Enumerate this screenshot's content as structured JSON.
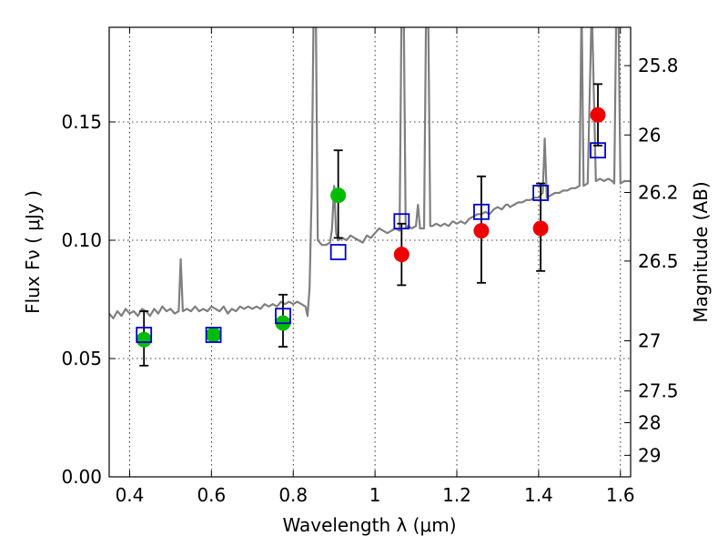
{
  "chart_data": {
    "type": "scatter",
    "xlabel": "Wavelength  λ (μm)",
    "ylabel": "Flux  Fν  ( μJy )",
    "y2label": "Magnitude (AB)",
    "xlim": [
      0.35,
      1.625
    ],
    "ylim": [
      0.0,
      0.19
    ],
    "x_ticks": [
      0.4,
      0.6,
      0.8,
      1.0,
      1.2,
      1.4,
      1.6
    ],
    "x_tick_labels": [
      "0.4",
      "0.6",
      "0.8",
      "1",
      "1.2",
      "1.4",
      "1.6"
    ],
    "y_ticks": [
      0.0,
      0.05,
      0.1,
      0.15
    ],
    "y_tick_labels": [
      "0.00",
      "0.05",
      "0.10",
      "0.15"
    ],
    "y2_ticks": [
      {
        "label": "25.8",
        "flux": 0.1738
      },
      {
        "label": "26",
        "flux": 0.1445
      },
      {
        "label": "26.2",
        "flux": 0.1202
      },
      {
        "label": "26.5",
        "flux": 0.0912
      },
      {
        "label": "27",
        "flux": 0.0575
      },
      {
        "label": "27.5",
        "flux": 0.0363
      },
      {
        "label": "28",
        "flux": 0.0229
      },
      {
        "label": "29",
        "flux": 0.0091
      }
    ],
    "grid": true,
    "series": [
      {
        "marker": "line",
        "color": "#7f7f7f",
        "points": [
          [
            0.35,
            0.069
          ],
          [
            0.36,
            0.067
          ],
          [
            0.37,
            0.07
          ],
          [
            0.38,
            0.068
          ],
          [
            0.39,
            0.071
          ],
          [
            0.4,
            0.069
          ],
          [
            0.41,
            0.07
          ],
          [
            0.42,
            0.068
          ],
          [
            0.43,
            0.071
          ],
          [
            0.44,
            0.07
          ],
          [
            0.45,
            0.068
          ],
          [
            0.46,
            0.071
          ],
          [
            0.47,
            0.069
          ],
          [
            0.48,
            0.072
          ],
          [
            0.49,
            0.07
          ],
          [
            0.5,
            0.071
          ],
          [
            0.51,
            0.069
          ],
          [
            0.52,
            0.07
          ],
          [
            0.525,
            0.092
          ],
          [
            0.53,
            0.07
          ],
          [
            0.54,
            0.071
          ],
          [
            0.55,
            0.07
          ],
          [
            0.56,
            0.072
          ],
          [
            0.57,
            0.07
          ],
          [
            0.58,
            0.071
          ],
          [
            0.59,
            0.07
          ],
          [
            0.6,
            0.072
          ],
          [
            0.61,
            0.071
          ],
          [
            0.62,
            0.07
          ],
          [
            0.63,
            0.072
          ],
          [
            0.64,
            0.069
          ],
          [
            0.65,
            0.071
          ],
          [
            0.66,
            0.07
          ],
          [
            0.67,
            0.072
          ],
          [
            0.68,
            0.071
          ],
          [
            0.69,
            0.072
          ],
          [
            0.7,
            0.071
          ],
          [
            0.71,
            0.072
          ],
          [
            0.72,
            0.071
          ],
          [
            0.73,
            0.073
          ],
          [
            0.74,
            0.072
          ],
          [
            0.75,
            0.073
          ],
          [
            0.76,
            0.072
          ],
          [
            0.77,
            0.074
          ],
          [
            0.78,
            0.073
          ],
          [
            0.79,
            0.074
          ],
          [
            0.8,
            0.073
          ],
          [
            0.81,
            0.074
          ],
          [
            0.82,
            0.073
          ],
          [
            0.83,
            0.072
          ],
          [
            0.835,
            0.068
          ],
          [
            0.84,
            0.08
          ],
          [
            0.845,
            0.12
          ],
          [
            0.85,
            0.2
          ],
          [
            0.855,
            0.2
          ],
          [
            0.86,
            0.1
          ],
          [
            0.87,
            0.098
          ],
          [
            0.88,
            0.098
          ],
          [
            0.89,
            0.099
          ],
          [
            0.895,
            0.105
          ],
          [
            0.9,
            0.123
          ],
          [
            0.905,
            0.103
          ],
          [
            0.91,
            0.1
          ],
          [
            0.92,
            0.101
          ],
          [
            0.93,
            0.1
          ],
          [
            0.94,
            0.102
          ],
          [
            0.95,
            0.101
          ],
          [
            0.96,
            0.1
          ],
          [
            0.97,
            0.099
          ],
          [
            0.98,
            0.102
          ],
          [
            0.99,
            0.101
          ],
          [
            1.0,
            0.103
          ],
          [
            1.01,
            0.105
          ],
          [
            1.02,
            0.104
          ],
          [
            1.03,
            0.103
          ],
          [
            1.04,
            0.104
          ],
          [
            1.05,
            0.105
          ],
          [
            1.06,
            0.104
          ],
          [
            1.065,
            0.2
          ],
          [
            1.07,
            0.2
          ],
          [
            1.075,
            0.105
          ],
          [
            1.08,
            0.106
          ],
          [
            1.09,
            0.105
          ],
          [
            1.1,
            0.106
          ],
          [
            1.105,
            0.115
          ],
          [
            1.11,
            0.105
          ],
          [
            1.12,
            0.105
          ],
          [
            1.125,
            0.2
          ],
          [
            1.13,
            0.2
          ],
          [
            1.135,
            0.106
          ],
          [
            1.14,
            0.106
          ],
          [
            1.15,
            0.107
          ],
          [
            1.16,
            0.106
          ],
          [
            1.17,
            0.107
          ],
          [
            1.18,
            0.106
          ],
          [
            1.19,
            0.108
          ],
          [
            1.2,
            0.107
          ],
          [
            1.21,
            0.108
          ],
          [
            1.22,
            0.107
          ],
          [
            1.23,
            0.109
          ],
          [
            1.24,
            0.11
          ],
          [
            1.25,
            0.111
          ],
          [
            1.26,
            0.111
          ],
          [
            1.27,
            0.112
          ],
          [
            1.28,
            0.111
          ],
          [
            1.29,
            0.113
          ],
          [
            1.3,
            0.114
          ],
          [
            1.31,
            0.113
          ],
          [
            1.32,
            0.115
          ],
          [
            1.325,
            0.115
          ],
          [
            1.33,
            0.114
          ],
          [
            1.34,
            0.115
          ],
          [
            1.35,
            0.116
          ],
          [
            1.36,
            0.116
          ],
          [
            1.37,
            0.117
          ],
          [
            1.38,
            0.117
          ],
          [
            1.39,
            0.118
          ],
          [
            1.4,
            0.118
          ],
          [
            1.41,
            0.12
          ],
          [
            1.415,
            0.143
          ],
          [
            1.42,
            0.118
          ],
          [
            1.43,
            0.119
          ],
          [
            1.44,
            0.12
          ],
          [
            1.45,
            0.12
          ],
          [
            1.46,
            0.121
          ],
          [
            1.47,
            0.121
          ],
          [
            1.48,
            0.122
          ],
          [
            1.49,
            0.122
          ],
          [
            1.5,
            0.123
          ],
          [
            1.505,
            0.2
          ],
          [
            1.51,
            0.123
          ],
          [
            1.52,
            0.124
          ],
          [
            1.53,
            0.2
          ],
          [
            1.54,
            0.125
          ],
          [
            1.55,
            0.126
          ],
          [
            1.56,
            0.125
          ],
          [
            1.57,
            0.126
          ],
          [
            1.58,
            0.125
          ],
          [
            1.585,
            0.124
          ],
          [
            1.59,
            0.2
          ],
          [
            1.595,
            0.2
          ],
          [
            1.6,
            0.124
          ],
          [
            1.61,
            0.125
          ],
          [
            1.625,
            0.125
          ]
        ]
      },
      {
        "marker": "errorbar",
        "color": "#000000",
        "points": [
          {
            "x": 0.435,
            "ylow": 0.047,
            "yhigh": 0.07
          },
          {
            "x": 0.775,
            "ylow": 0.055,
            "yhigh": 0.077
          },
          {
            "x": 0.91,
            "ylow": 0.101,
            "yhigh": 0.138
          },
          {
            "x": 1.065,
            "ylow": 0.081,
            "yhigh": 0.107
          },
          {
            "x": 1.26,
            "ylow": 0.082,
            "yhigh": 0.127
          },
          {
            "x": 1.405,
            "ylow": 0.087,
            "yhigh": 0.124
          },
          {
            "x": 1.545,
            "ylow": 0.14,
            "yhigh": 0.166
          }
        ]
      },
      {
        "marker": "circle",
        "color": "#00bb00",
        "points": [
          [
            0.435,
            0.058
          ],
          [
            0.605,
            0.06
          ],
          [
            0.775,
            0.065
          ],
          [
            0.91,
            0.119
          ]
        ]
      },
      {
        "marker": "circle",
        "color": "#ee0000",
        "points": [
          [
            1.065,
            0.094
          ],
          [
            1.26,
            0.104
          ],
          [
            1.405,
            0.105
          ],
          [
            1.545,
            0.153
          ]
        ]
      },
      {
        "marker": "square",
        "color": "#0000cc",
        "points": [
          [
            0.435,
            0.06
          ],
          [
            0.605,
            0.06
          ],
          [
            0.775,
            0.068
          ],
          [
            0.91,
            0.095
          ],
          [
            1.065,
            0.108
          ],
          [
            1.26,
            0.112
          ],
          [
            1.405,
            0.12
          ],
          [
            1.545,
            0.138
          ]
        ]
      }
    ]
  }
}
